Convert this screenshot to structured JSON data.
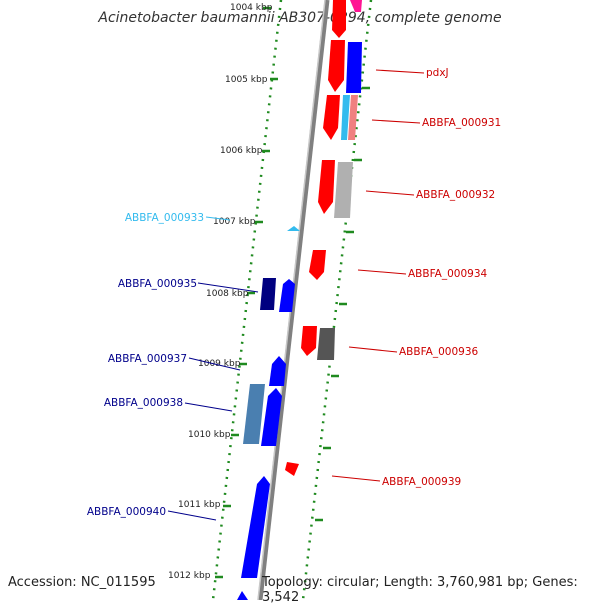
{
  "title": "Acinetobacter baumannii AB307-0294, complete genome",
  "footer": {
    "accession": "Accession: NC_011595",
    "topology": "Topology: circular; Length: 3,760,981 bp; Genes: 3,542"
  },
  "colors": {
    "backbone": "#808080",
    "tick_dots": "#1f8a1f",
    "red": "#ff0000",
    "blue": "#0000ff",
    "navy": "#000080",
    "cyan": "#33bbee",
    "steel": "#4a7fb0",
    "pink": "#ff1493",
    "salmon": "#f08080",
    "gray": "#a0a0a0",
    "dark_gray": "#555555",
    "label_red": "#cc0000",
    "label_blue": "#00008b",
    "label_cyan": "#33bbee"
  },
  "scale_ticks": [
    "1004 kbp",
    "1005 kbp",
    "1006 kbp",
    "1007 kbp",
    "1008 kbp",
    "1009 kbp",
    "1010 kbp",
    "1011 kbp",
    "1012 kbp"
  ],
  "gene_labels": {
    "pdxJ": "pdxJ",
    "g931": "ABBFA_000931",
    "g932": "ABBFA_000932",
    "g933": "ABBFA_000933",
    "g934": "ABBFA_000934",
    "g935": "ABBFA_000935",
    "g936": "ABBFA_000936",
    "g937": "ABBFA_000937",
    "g938": "ABBFA_000938",
    "g939": "ABBFA_000939",
    "g940": "ABBFA_000940"
  }
}
